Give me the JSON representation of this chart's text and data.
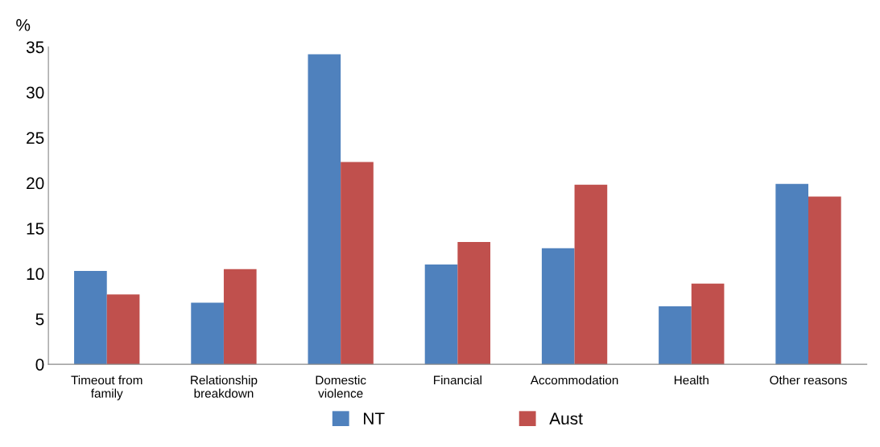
{
  "chart_data": {
    "type": "bar",
    "ylabel": "%",
    "categories": [
      "Timeout from\nfamily",
      "Relationship\nbreakdown",
      "Domestic\nviolence",
      "Financial",
      "Accommodation",
      "Health",
      "Other reasons"
    ],
    "series": [
      {
        "name": "NT",
        "color": "#4f81bd",
        "values": [
          10.3,
          6.8,
          34.2,
          11.0,
          12.8,
          6.4,
          19.9
        ]
      },
      {
        "name": "Aust",
        "color": "#c0504d",
        "values": [
          7.7,
          10.5,
          22.3,
          13.5,
          19.8,
          8.9,
          18.5
        ]
      }
    ],
    "ylim": [
      0,
      35
    ],
    "yticks": [
      0,
      5,
      10,
      15,
      20,
      25,
      30,
      35
    ],
    "grid": false,
    "legend": "bottom"
  }
}
